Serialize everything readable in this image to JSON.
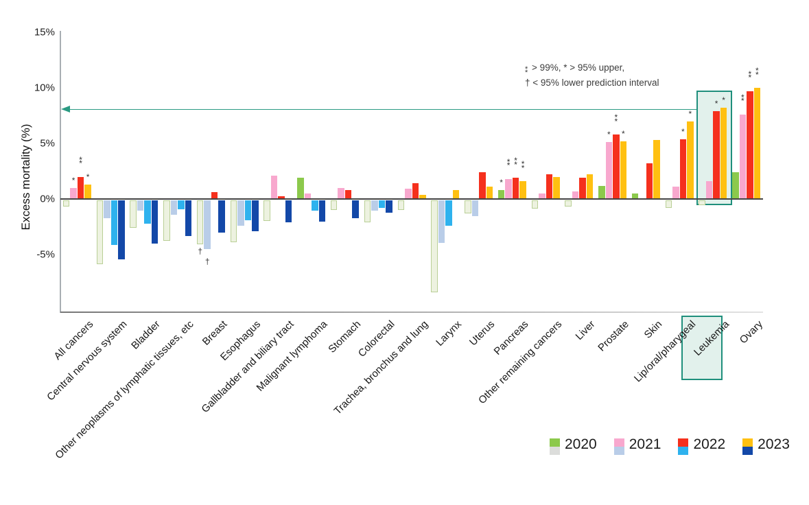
{
  "note": {
    "line1_symbol": "**",
    "line1_text": "> 99%, * > 95% upper,",
    "line2_text": "† < 95% lower prediction interval"
  },
  "y_axis": {
    "title": "Excess mortality (%)",
    "ticks": [
      {
        "label": "15%",
        "value": 15
      },
      {
        "label": "10%",
        "value": 10
      },
      {
        "label": "5%",
        "value": 5
      },
      {
        "label": "0%",
        "value": 0
      },
      {
        "label": "-5%",
        "value": -5
      }
    ]
  },
  "highlight": {
    "category": "Leukemia",
    "box_color": "#1f8f7c",
    "fill_color": "#e2f1ec",
    "arrow_y_value": 8.05,
    "arrow_color": "#2a9a82"
  },
  "chart_data": {
    "type": "bar",
    "title": "",
    "xlabel": "",
    "ylabel": "Excess mortality (%)",
    "ylim": [
      -10,
      15
    ],
    "grid": false,
    "legend_position": "bottom-right",
    "categories": [
      "All cancers",
      "Central nervous system",
      "Bladder",
      "Other neoplasms of lymphatic tissues, etc",
      "Breast",
      "Esophagus",
      "Gallbladder and biliary tract",
      "Malignant lymphoma",
      "Stomach",
      "Colorectal",
      "Trachea, bronchus and lung",
      "Larynx",
      "Uterus",
      "Pancreas",
      "Other remaining cancers",
      "Liver",
      "Prostate",
      "Skin",
      "Lip/oral/pharygeal",
      "Leukemia",
      "Ovary"
    ],
    "series": [
      {
        "name": "2020",
        "color_positive": "#8cc94c",
        "color_negative": "#edf2e0",
        "negative_border": "#b9cf96",
        "legend_negative": "#dcdddb",
        "values": [
          -0.5,
          -5.7,
          -2.4,
          -3.6,
          -3.9,
          -3.7,
          -1.8,
          1.9,
          -0.8,
          -1.9,
          -0.8,
          -8.2,
          -1.1,
          0.8,
          -0.7,
          -0.5,
          1.2,
          0.5,
          -0.6,
          -0.35,
          2.4
        ]
      },
      {
        "name": "2021",
        "color_positive": "#f8a8ce",
        "color_negative": "#b9cde8",
        "legend_negative": "#b9cde8",
        "values": [
          1.0,
          -1.6,
          -0.9,
          -1.3,
          -4.4,
          -2.3,
          2.1,
          0.5,
          1.0,
          -0.9,
          0.9,
          -3.8,
          -1.4,
          1.8,
          0.5,
          0.7,
          5.1,
          0,
          1.1,
          1.6,
          7.6
        ]
      },
      {
        "name": "2022",
        "color_positive": "#f5301d",
        "color_negative": "#2eb2ee",
        "legend_negative": "#2eb2ee",
        "values": [
          2.0,
          -4.0,
          -2.1,
          -0.8,
          0.6,
          -1.8,
          0.25,
          -0.9,
          0.8,
          -0.7,
          1.4,
          -2.3,
          2.4,
          1.9,
          2.2,
          1.9,
          5.8,
          3.2,
          5.4,
          7.9,
          9.7
        ]
      },
      {
        "name": "2023",
        "color_positive": "#ffc011",
        "color_negative": "#1348a8",
        "legend_negative": "#1348a8",
        "values": [
          1.3,
          -5.3,
          -3.9,
          -3.2,
          -2.9,
          -2.8,
          -2.0,
          -1.9,
          -1.6,
          -1.1,
          0.4,
          0.8,
          1.1,
          1.6,
          2.0,
          2.2,
          5.2,
          5.3,
          7.0,
          8.2,
          10.0
        ]
      }
    ],
    "significance_marks": [
      {
        "category": "All cancers",
        "series": "2021",
        "mark": "*",
        "position": "above"
      },
      {
        "category": "All cancers",
        "series": "2022",
        "mark": "**",
        "position": "above"
      },
      {
        "category": "All cancers",
        "series": "2023",
        "mark": "*",
        "position": "above"
      },
      {
        "category": "Breast",
        "series": "2020",
        "mark": "†",
        "position": "below"
      },
      {
        "category": "Breast",
        "series": "2021",
        "mark": "†",
        "position": "below"
      },
      {
        "category": "Pancreas",
        "series": "2020",
        "mark": "*",
        "position": "above"
      },
      {
        "category": "Pancreas",
        "series": "2021",
        "mark": "**",
        "position": "above"
      },
      {
        "category": "Pancreas",
        "series": "2022",
        "mark": "**",
        "position": "above"
      },
      {
        "category": "Pancreas",
        "series": "2023",
        "mark": "**",
        "position": "above"
      },
      {
        "category": "Prostate",
        "series": "2021",
        "mark": "*",
        "position": "above"
      },
      {
        "category": "Prostate",
        "series": "2022",
        "mark": "**",
        "position": "above"
      },
      {
        "category": "Prostate",
        "series": "2023",
        "mark": "*",
        "position": "above"
      },
      {
        "category": "Lip/oral/pharygeal",
        "series": "2022",
        "mark": "*",
        "position": "above"
      },
      {
        "category": "Lip/oral/pharygeal",
        "series": "2023",
        "mark": "*",
        "position": "above"
      },
      {
        "category": "Leukemia",
        "series": "2022",
        "mark": "*",
        "position": "above"
      },
      {
        "category": "Leukemia",
        "series": "2023",
        "mark": "*",
        "position": "above"
      },
      {
        "category": "Ovary",
        "series": "2021",
        "mark": "**",
        "position": "above"
      },
      {
        "category": "Ovary",
        "series": "2022",
        "mark": "**",
        "position": "above"
      },
      {
        "category": "Ovary",
        "series": "2023",
        "mark": "**",
        "position": "above"
      }
    ],
    "legend": [
      {
        "label": "2020"
      },
      {
        "label": "2021"
      },
      {
        "label": "2022"
      },
      {
        "label": "2023"
      }
    ]
  }
}
